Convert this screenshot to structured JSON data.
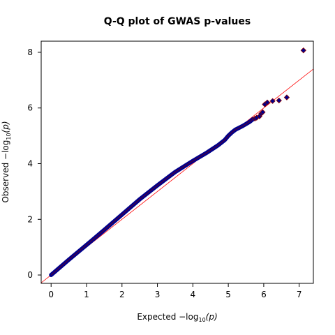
{
  "chart_data": {
    "type": "scatter",
    "title": "Q-Q plot of GWAS p-values",
    "xlabel": {
      "prefix": "Expected  −log",
      "sub": "10",
      "suffix": "(p)"
    },
    "ylabel": {
      "prefix": "Observed  −log",
      "sub": "10",
      "suffix": "(p)"
    },
    "xlim": [
      -0.28,
      7.4
    ],
    "ylim": [
      -0.3,
      8.4
    ],
    "xticks": [
      "0",
      "1",
      "2",
      "3",
      "4",
      "5",
      "6",
      "7"
    ],
    "yticks": [
      "0",
      "2",
      "4",
      "6",
      "8"
    ],
    "grid": false,
    "reference_line": {
      "slope": 1,
      "intercept": 0,
      "color": "#ff0000"
    },
    "marker": {
      "shape": "diamond",
      "fill": "#00008b",
      "edge": "#8b0000"
    },
    "curve_x": [
      0,
      0.5,
      1.0,
      1.5,
      2.0,
      2.5,
      3.0,
      3.5,
      4.0,
      4.4,
      4.7,
      4.9,
      5.0,
      5.1,
      5.2,
      5.4,
      5.6,
      5.7
    ],
    "curve_y": [
      0,
      0.55,
      1.08,
      1.62,
      2.17,
      2.72,
      3.22,
      3.7,
      4.1,
      4.4,
      4.65,
      4.85,
      5.0,
      5.12,
      5.22,
      5.35,
      5.5,
      5.6
    ],
    "tail_points": [
      {
        "x": 5.75,
        "y": 5.62
      },
      {
        "x": 5.8,
        "y": 5.65
      },
      {
        "x": 5.88,
        "y": 5.7
      },
      {
        "x": 5.93,
        "y": 5.8
      },
      {
        "x": 5.97,
        "y": 5.85
      },
      {
        "x": 6.03,
        "y": 6.13
      },
      {
        "x": 6.1,
        "y": 6.2
      },
      {
        "x": 6.25,
        "y": 6.25
      },
      {
        "x": 6.43,
        "y": 6.27
      },
      {
        "x": 6.65,
        "y": 6.38
      },
      {
        "x": 7.12,
        "y": 8.07
      }
    ]
  }
}
